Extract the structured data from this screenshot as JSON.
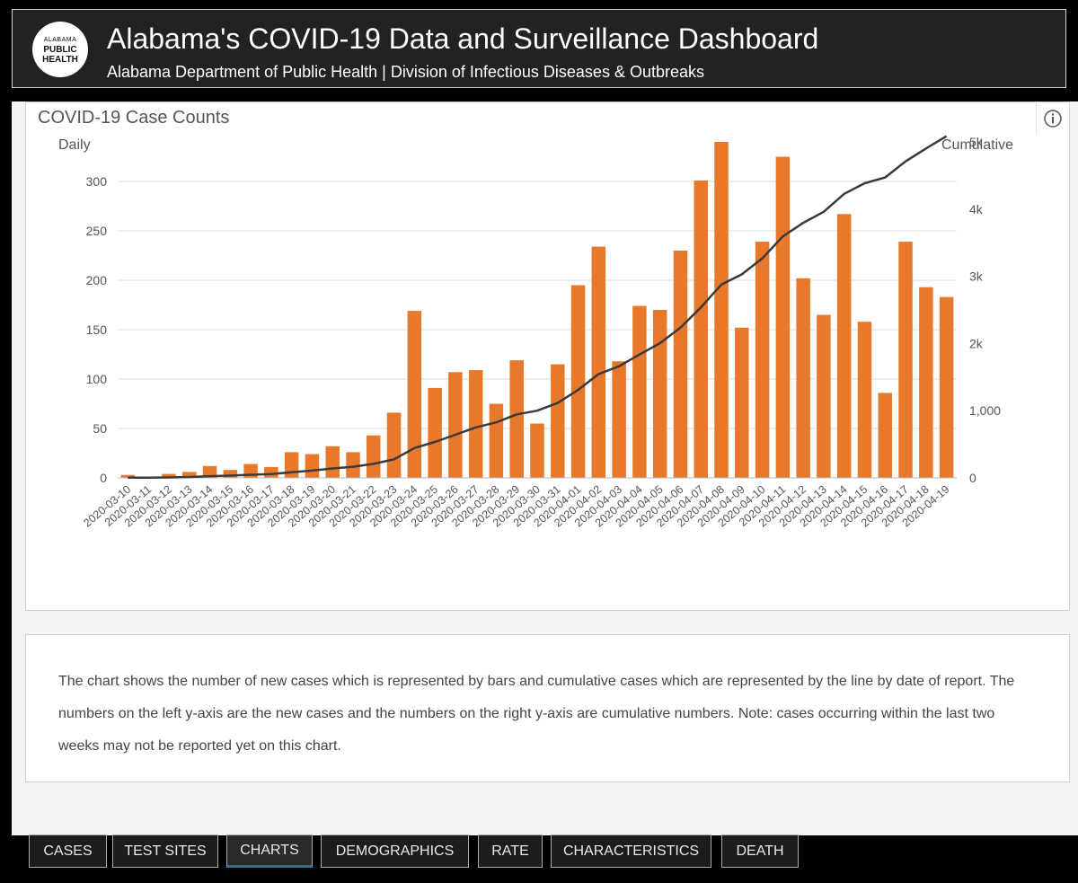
{
  "header": {
    "logo_line1": "ALABAMA",
    "logo_line2": "PUBLIC",
    "logo_line3": "HEALTH",
    "title": "Alabama's COVID-19 Data and Surveillance Dashboard",
    "subtitle": "Alabama Department of Public Health | Division of Infectious Diseases & Outbreaks"
  },
  "chart_panel": {
    "title": "COVID-19 Case Counts"
  },
  "colors": {
    "bar": "#e8782a",
    "line": "#3a3a3a",
    "grid": "#dddddd",
    "tick_text": "#555555"
  },
  "chart_data": {
    "type": "bar",
    "title": "COVID-19 Case Counts",
    "ylabel": "Daily",
    "y2label": "Cumulative",
    "ylim": [
      0,
      340
    ],
    "y2lim": [
      0,
      5000
    ],
    "yticks": [
      0,
      50,
      100,
      150,
      200,
      250,
      300
    ],
    "y2ticks": [
      {
        "value": 0,
        "label": "0"
      },
      {
        "value": 1000,
        "label": "1,000"
      },
      {
        "value": 2000,
        "label": "2k"
      },
      {
        "value": 3000,
        "label": "3k"
      },
      {
        "value": 4000,
        "label": "4k"
      },
      {
        "value": 5000,
        "label": "5k"
      }
    ],
    "categories": [
      "2020-03-10",
      "2020-03-11",
      "2020-03-12",
      "2020-03-13",
      "2020-03-14",
      "2020-03-15",
      "2020-03-16",
      "2020-03-17",
      "2020-03-18",
      "2020-03-19",
      "2020-03-20",
      "2020-03-21",
      "2020-03-22",
      "2020-03-23",
      "2020-03-24",
      "2020-03-25",
      "2020-03-26",
      "2020-03-27",
      "2020-03-28",
      "2020-03-29",
      "2020-03-30",
      "2020-03-31",
      "2020-04-01",
      "2020-04-02",
      "2020-04-03",
      "2020-04-04",
      "2020-04-05",
      "2020-04-06",
      "2020-04-07",
      "2020-04-08",
      "2020-04-09",
      "2020-04-10",
      "2020-04-11",
      "2020-04-12",
      "2020-04-13",
      "2020-04-14",
      "2020-04-15",
      "2020-04-16",
      "2020-04-17",
      "2020-04-18",
      "2020-04-19"
    ],
    "tick_labels": [
      "2020-03-10",
      "2020-03-11",
      "2020-03-12",
      "2020-03-13",
      "2020-03-14",
      "2020-03-15",
      "2020-03-16",
      "2020-03-17",
      "2020-03-18",
      "2020-03-19",
      "2020-03-20",
      "2020-03-21",
      "2020-03-22",
      "2020-03-23",
      "2020-03-24",
      "2020-03-25",
      "2020-03-26",
      "2020-03-27",
      "2020-03-28",
      "2020-03-29",
      "2020-03-30",
      "2020-03-31",
      "2020-04-01",
      "2020-04-02",
      "2020-04-03",
      "2020-04-04",
      "2020-04-05",
      "2020-04-06",
      "2020-04-07",
      "2020-04-08",
      "2020-04-09",
      "2020-04-10",
      "2020-04-11",
      "2020-04-12",
      "2020-04-13",
      "2020-04-14",
      "2020-04-15",
      "2020-04-16",
      "2020-04-17",
      "2020-04-18",
      "2020-04-19"
    ],
    "series": [
      {
        "name": "Daily",
        "type": "bar",
        "axis": "left",
        "values": [
          3,
          0,
          4,
          6,
          12,
          8,
          14,
          11,
          26,
          24,
          32,
          26,
          43,
          66,
          169,
          91,
          107,
          109,
          75,
          119,
          55,
          115,
          195,
          234,
          118,
          174,
          170,
          230,
          301,
          340,
          152,
          239,
          325,
          202,
          165,
          267,
          158,
          86,
          239,
          193,
          183
        ]
      },
      {
        "name": "Cumulative",
        "type": "line",
        "axis": "right",
        "values": [
          3,
          3,
          7,
          13,
          25,
          33,
          47,
          58,
          84,
          108,
          140,
          166,
          209,
          275,
          444,
          535,
          642,
          751,
          826,
          945,
          1000,
          1115,
          1310,
          1544,
          1662,
          1836,
          2006,
          2236,
          2537,
          2877,
          3029,
          3268,
          3593,
          3795,
          3960,
          4227,
          4385,
          4471,
          4710,
          4903,
          5086
        ]
      }
    ]
  },
  "description": {
    "text": "The chart shows the number of new cases which is represented by bars and cumulative cases which are represented by the line by date of report. The numbers on the left y-axis are the new cases and the numbers on the right y-axis are cumulative numbers. Note: cases occurring within the last two weeks may not be reported yet on this chart."
  },
  "tabs": [
    {
      "label": "CASES"
    },
    {
      "label": "TEST SITES"
    },
    {
      "label": "CHARTS",
      "active": true
    },
    {
      "label": "DEMOGRAPHICS"
    },
    {
      "label": "RATE"
    },
    {
      "label": "CHARACTERISTICS"
    },
    {
      "label": "DEATH"
    }
  ]
}
